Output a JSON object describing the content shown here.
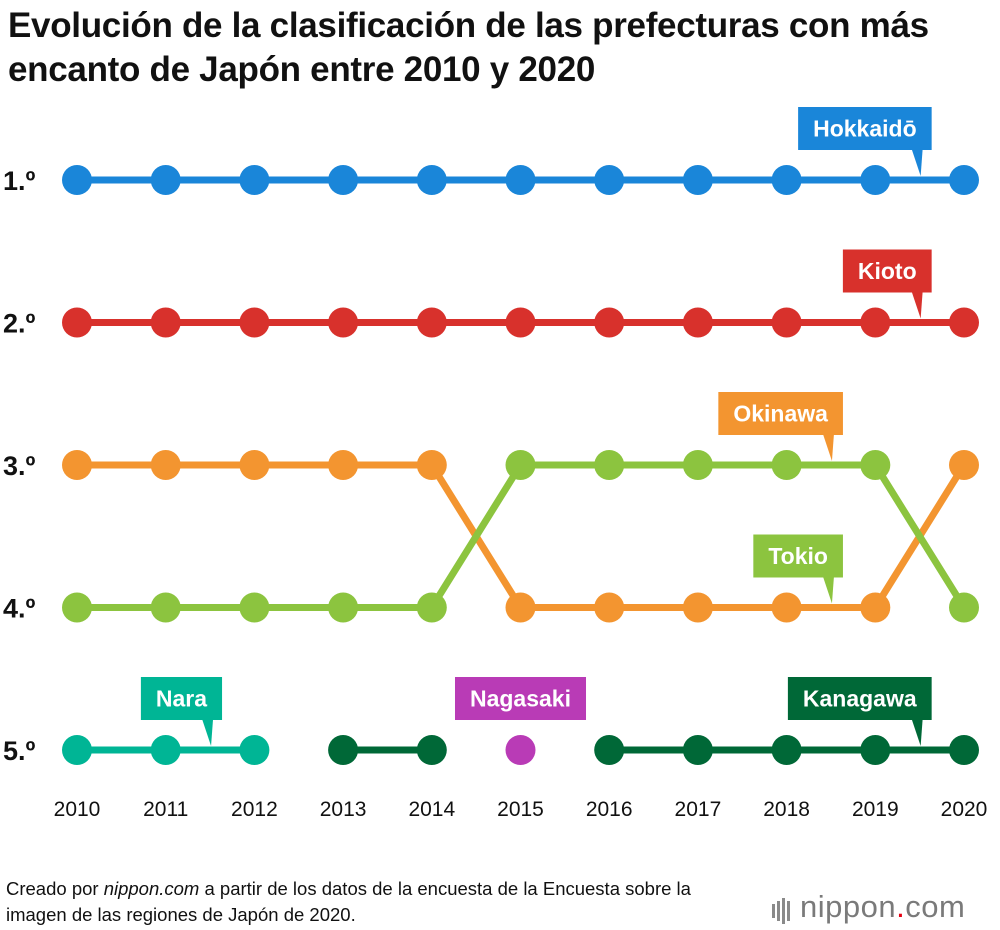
{
  "title": "Evolución de la clasificación de las prefecturas con más encanto de Japón entre 2010 y 2020",
  "footer": {
    "part1": "Creado por ",
    "site": "nippon.com",
    "part2": " a partir de los datos de la encuesta de la Encuesta sobre la imagen de las regiones de Japón de 2020."
  },
  "logo": {
    "name": "nippon",
    "dot": ".",
    "tld": "com"
  },
  "chart_data": {
    "type": "line",
    "title": "Evolución de la clasificación de las prefecturas con más encanto de Japón entre 2010 y 2020",
    "xlabel": "",
    "ylabel": "",
    "x": [
      2010,
      2011,
      2012,
      2013,
      2014,
      2015,
      2016,
      2017,
      2018,
      2019,
      2020
    ],
    "x_labels": [
      "2010",
      "2011",
      "2012",
      "2013",
      "2014",
      "2015",
      "2016",
      "2017",
      "2018",
      "2019",
      "2020"
    ],
    "rank_labels": [
      "1.º",
      "2.º",
      "3.º",
      "4.º",
      "5.º"
    ],
    "ylim": [
      1,
      5
    ],
    "y_inverted": true,
    "grid": false,
    "series": [
      {
        "name": "Hokkaidō",
        "color": "#1a86d9",
        "values": [
          1,
          1,
          1,
          1,
          1,
          1,
          1,
          1,
          1,
          1,
          1
        ],
        "label_anchor_year": 2019.5
      },
      {
        "name": "Kioto",
        "color": "#d8312c",
        "values": [
          2,
          2,
          2,
          2,
          2,
          2,
          2,
          2,
          2,
          2,
          2
        ],
        "label_anchor_year": 2019.5
      },
      {
        "name": "Okinawa",
        "color": "#f39530",
        "values": [
          3,
          3,
          3,
          3,
          3,
          4,
          4,
          4,
          4,
          4,
          3
        ],
        "label_anchor_year": 2018.5
      },
      {
        "name": "Tokio",
        "color": "#8cc43f",
        "values": [
          4,
          4,
          4,
          4,
          4,
          3,
          3,
          3,
          3,
          3,
          4
        ],
        "label_anchor_year": 2018.5
      },
      {
        "name": "Nara",
        "color": "#00b595",
        "values": [
          5,
          5,
          5,
          null,
          null,
          null,
          null,
          null,
          null,
          null,
          null
        ],
        "label_anchor_year": 2011.5
      },
      {
        "name": "Kanagawa",
        "color": "#006837",
        "values": [
          null,
          null,
          null,
          5,
          5,
          null,
          5,
          5,
          5,
          5,
          5
        ],
        "label_anchor_year": 2019.5
      },
      {
        "name": "Nagasaki",
        "color": "#b93bb6",
        "values": [
          null,
          null,
          null,
          null,
          null,
          5,
          null,
          null,
          null,
          null,
          null
        ],
        "label_anchor_year": 2015
      }
    ]
  }
}
